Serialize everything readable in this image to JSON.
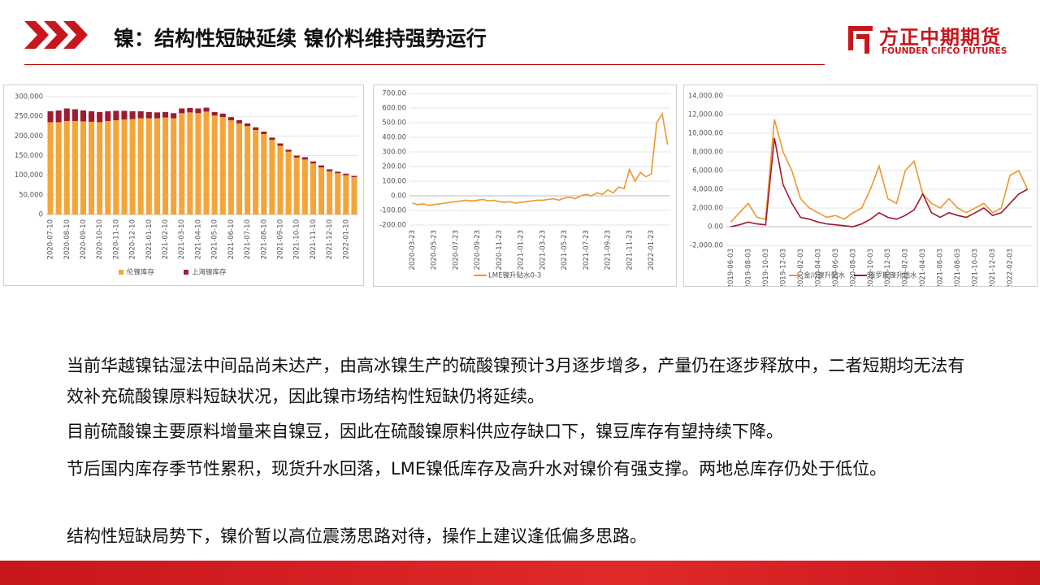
{
  "header": {
    "title": "镍：结构性短缺延续 镍价料维持强势运行",
    "logo": "方正中期期货",
    "logo_en": "FOUNDER CIFCO FUTURES"
  },
  "chart_data": [
    {
      "type": "bar",
      "stacked": true,
      "grid": true,
      "categories": [
        "2020-07-10",
        null,
        "2020-08-10",
        null,
        "2020-09-10",
        null,
        "2020-10-10",
        null,
        "2020-11-10",
        null,
        "2020-12-10",
        null,
        "2021-01-10",
        null,
        "2021-02-10",
        null,
        "2021-03-10",
        null,
        "2021-04-10",
        null,
        "2021-05-10",
        null,
        "2021-06-10",
        null,
        "2021-07-10",
        null,
        "2021-08-10",
        null,
        "2021-09-10",
        null,
        "2021-10-10",
        null,
        "2021-11-10",
        null,
        "2021-12-10",
        null,
        "2022-01-10",
        null
      ],
      "series": [
        {
          "name": "伦镍库存",
          "color": "#f4a53a",
          "values": [
            235000,
            235000,
            238000,
            238000,
            237000,
            236000,
            235000,
            238000,
            240000,
            242000,
            243000,
            245000,
            245000,
            245000,
            247000,
            245000,
            258000,
            260000,
            258000,
            262000,
            252000,
            248000,
            240000,
            232000,
            225000,
            215000,
            205000,
            190000,
            175000,
            160000,
            145000,
            140000,
            130000,
            120000,
            110000,
            105000,
            100000,
            95000
          ]
        },
        {
          "name": "上海镍库存",
          "color": "#9e1b32",
          "values": [
            28000,
            30000,
            32000,
            30000,
            28000,
            27000,
            26000,
            25000,
            24000,
            22000,
            20000,
            18000,
            16000,
            15000,
            14000,
            13000,
            12000,
            11000,
            12000,
            10000,
            9000,
            9000,
            8000,
            8000,
            7000,
            7000,
            6000,
            6000,
            6000,
            5000,
            5000,
            6000,
            5000,
            5000,
            5000,
            4000,
            4000,
            3000
          ]
        }
      ],
      "ylim": [
        0,
        300000
      ],
      "yticks": [
        0,
        {
          "value": 50000,
          "label": "50,000"
        },
        {
          "value": 100000,
          "label": "100,000"
        },
        {
          "value": 150000,
          "label": "150,000"
        },
        {
          "value": 200000,
          "label": "200,000"
        },
        {
          "value": 250000,
          "label": "250,000"
        },
        {
          "value": 300000,
          "label": "300,000"
        }
      ]
    },
    {
      "type": "line",
      "grid": true,
      "categories": [
        "2020-03-23",
        null,
        null,
        null,
        "2020-05-23",
        null,
        null,
        null,
        "2020-07-23",
        null,
        null,
        null,
        "2020-09-23",
        null,
        null,
        null,
        "2020-11-23",
        null,
        null,
        null,
        "2021-01-23",
        null,
        null,
        null,
        "2021-03-23",
        null,
        null,
        null,
        "2021-05-23",
        null,
        null,
        null,
        "2021-07-23",
        null,
        null,
        null,
        "2021-09-23",
        null,
        null,
        null,
        "2021-11-23",
        null,
        null,
        null,
        "2022-01-23",
        null,
        null,
        null
      ],
      "series": [
        {
          "name": "LME镍升贴水0-3",
          "color": "#f0962e",
          "values": [
            -50,
            -60,
            -55,
            -65,
            -60,
            -55,
            -50,
            -45,
            -40,
            -35,
            -30,
            -35,
            -30,
            -25,
            -35,
            -30,
            -40,
            -45,
            -40,
            -50,
            -45,
            -40,
            -35,
            -30,
            -30,
            -25,
            -20,
            -30,
            -15,
            -10,
            -20,
            0,
            10,
            0,
            20,
            10,
            40,
            20,
            60,
            50,
            180,
            100,
            160,
            130,
            150,
            500,
            560,
            350
          ]
        }
      ],
      "ylim": [
        -200,
        700
      ],
      "yticks": [
        {
          "value": -200,
          "label": "-200.00"
        },
        {
          "value": -100,
          "label": "-100.00"
        },
        {
          "value": 0,
          "label": "0.00"
        },
        {
          "value": 100,
          "label": "100.00"
        },
        {
          "value": 200,
          "label": "200.00"
        },
        {
          "value": 300,
          "label": "300.00"
        },
        {
          "value": 400,
          "label": "400.00"
        },
        {
          "value": 500,
          "label": "500.00"
        },
        {
          "value": 600,
          "label": "600.00"
        },
        {
          "value": 700,
          "label": "700.00"
        }
      ]
    },
    {
      "type": "line",
      "grid": true,
      "categories": [
        "2019-06-03",
        null,
        "2019-08-03",
        null,
        "2019-10-03",
        null,
        "2019-12-03",
        null,
        "2020-02-03",
        null,
        "2020-04-03",
        null,
        "2020-06-03",
        null,
        "2020-08-03",
        null,
        "2020-10-03",
        null,
        "2020-12-03",
        null,
        "2021-02-03",
        null,
        "2021-04-03",
        null,
        "2021-06-03",
        null,
        "2021-08-03",
        null,
        "2021-10-03",
        null,
        "2021-12-03",
        null,
        "2022-02-03",
        null,
        null
      ],
      "series": [
        {
          "name": "金川镍升贴水",
          "color": "#f0962e",
          "values": [
            500,
            1500,
            2500,
            1000,
            800,
            11500,
            8000,
            6000,
            3000,
            2000,
            1500,
            1000,
            1200,
            800,
            1500,
            2000,
            4000,
            6500,
            3000,
            2500,
            6000,
            7000,
            3500,
            2500,
            2000,
            3000,
            2000,
            1500,
            2000,
            2500,
            1500,
            2000,
            5500,
            6000,
            4000
          ]
        },
        {
          "name": "俄罗斯镍升贴水",
          "color": "#9e1b32",
          "values": [
            0,
            200,
            500,
            300,
            200,
            9500,
            4500,
            2500,
            1000,
            800,
            500,
            300,
            200,
            100,
            0,
            300,
            800,
            1500,
            1000,
            800,
            1200,
            1800,
            3500,
            1500,
            1000,
            1500,
            1200,
            1000,
            1500,
            2000,
            1200,
            1500,
            2500,
            3500,
            4000
          ]
        }
      ],
      "ylim": [
        -2000,
        14000
      ],
      "yticks": [
        {
          "value": -2000,
          "label": "-2,000.00"
        },
        {
          "value": 0,
          "label": "0.00"
        },
        {
          "value": 2000,
          "label": "2,000.00"
        },
        {
          "value": 4000,
          "label": "4,000.00"
        },
        {
          "value": 6000,
          "label": "6,000.00"
        },
        {
          "value": 8000,
          "label": "8,000.00"
        },
        {
          "value": 10000,
          "label": "10,000.00"
        },
        {
          "value": 12000,
          "label": "12,000.00"
        },
        {
          "value": 14000,
          "label": "14,000.00"
        }
      ]
    }
  ],
  "paragraphs": [
    "当前华越镍钴湿法中间品尚未达产，由高冰镍生产的硫酸镍预计3月逐步增多，产量仍在逐步释放中，二者短期均无法有效补充硫酸镍原料短缺状况，因此镍市场结构性短缺仍将延续。",
    "目前硫酸镍主要原料增量来自镍豆，因此在硫酸镍原料供应存缺口下，镍豆库存有望持续下降。",
    "节后国内库存季节性累积，现货升水回落，LME镍低库存及高升水对镍价有强支撑。两地总库存仍处于低位。",
    "结构性短缺局势下，镍价暂以高位震荡思路对待，操作上建议逢低偏多思路。"
  ]
}
